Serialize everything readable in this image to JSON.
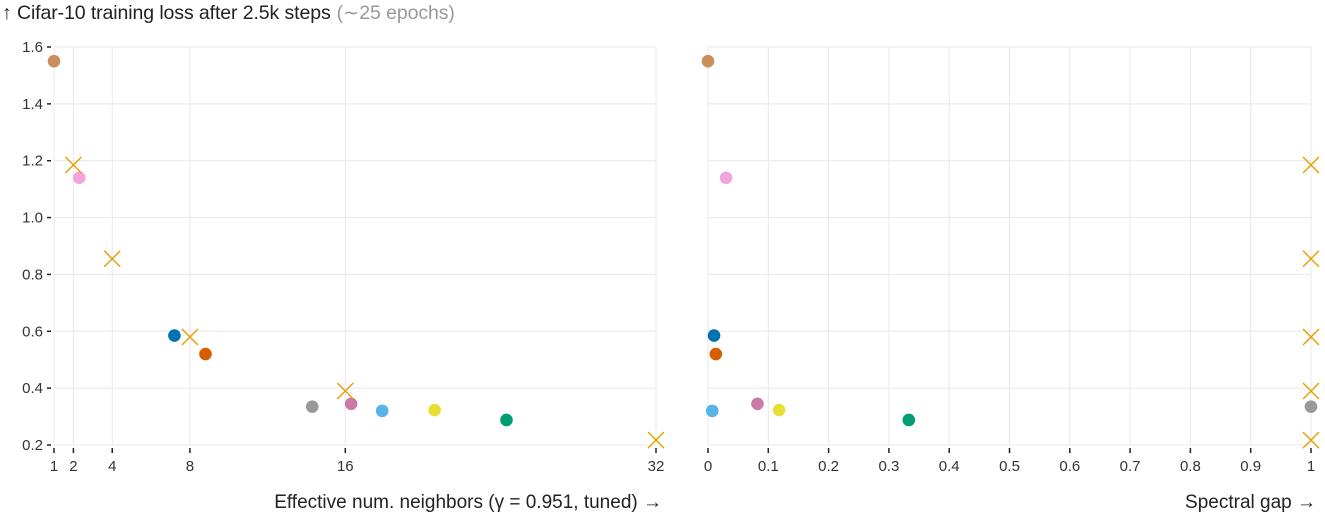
{
  "title": {
    "main": "↑ Cifar-10 training loss after 2.5k steps",
    "sub": "(∼25 epochs)"
  },
  "colors": {
    "grid": "#e8e8e8",
    "cross": "#E69F00",
    "tan": "#C98E5C",
    "pink": "#F5A3DD",
    "blue": "#0072B2",
    "vermillion": "#D55E00",
    "gray": "#999999",
    "purple": "#CC79A7",
    "skyblue": "#56B4E9",
    "yellow": "#E8DF34",
    "green": "#009E73"
  },
  "chart_data": [
    {
      "type": "scatter",
      "title": "Cifar-10 training loss after 2.5k steps (∼25 epochs)",
      "xlabel": "Effective num. neighbors (γ = 0.951, tuned) →",
      "ylabel": "Cifar-10 training loss",
      "xlim": [
        1,
        32
      ],
      "ylim": [
        0.2,
        1.6
      ],
      "xticks": [
        1,
        2,
        4,
        8,
        16,
        32
      ],
      "yticks": [
        0.2,
        0.4,
        0.6,
        0.8,
        1.0,
        1.2,
        1.4,
        1.6
      ],
      "grid": true,
      "series": [
        {
          "name": "tan",
          "marker": "circle",
          "color": "#C98E5C",
          "x": [
            1.0
          ],
          "y": [
            1.55
          ]
        },
        {
          "name": "pink",
          "marker": "circle",
          "color": "#F5A3DD",
          "x": [
            2.3
          ],
          "y": [
            1.14
          ]
        },
        {
          "name": "blue",
          "marker": "circle",
          "color": "#0072B2",
          "x": [
            7.2
          ],
          "y": [
            0.585
          ]
        },
        {
          "name": "vermillion",
          "marker": "circle",
          "color": "#D55E00",
          "x": [
            8.8
          ],
          "y": [
            0.52
          ]
        },
        {
          "name": "gray",
          "marker": "circle",
          "color": "#999999",
          "x": [
            14.3
          ],
          "y": [
            0.335
          ]
        },
        {
          "name": "purple",
          "marker": "circle",
          "color": "#CC79A7",
          "x": [
            16.3
          ],
          "y": [
            0.345
          ]
        },
        {
          "name": "skyblue",
          "marker": "circle",
          "color": "#56B4E9",
          "x": [
            17.9
          ],
          "y": [
            0.32
          ]
        },
        {
          "name": "yellow",
          "marker": "circle",
          "color": "#E8DF34",
          "x": [
            20.6
          ],
          "y": [
            0.323
          ]
        },
        {
          "name": "green",
          "marker": "circle",
          "color": "#009E73",
          "x": [
            24.3
          ],
          "y": [
            0.288
          ]
        },
        {
          "name": "cross",
          "marker": "x",
          "color": "#E69F00",
          "x": [
            2,
            4,
            8,
            16,
            32
          ],
          "y": [
            1.185,
            0.855,
            0.58,
            0.39,
            0.217
          ]
        }
      ]
    },
    {
      "type": "scatter",
      "title": "",
      "xlabel": "Spectral gap →",
      "ylabel": "",
      "xlim": [
        0,
        1
      ],
      "ylim": [
        0.2,
        1.6
      ],
      "xticks": [
        0,
        0.1,
        0.2,
        0.3,
        0.4,
        0.5,
        0.6,
        0.7,
        0.8,
        0.9,
        1
      ],
      "yticks": [
        0.2,
        0.4,
        0.6,
        0.8,
        1.0,
        1.2,
        1.4,
        1.6
      ],
      "grid": true,
      "series": [
        {
          "name": "tan",
          "marker": "circle",
          "color": "#C98E5C",
          "x": [
            0.0
          ],
          "y": [
            1.55
          ]
        },
        {
          "name": "pink",
          "marker": "circle",
          "color": "#F5A3DD",
          "x": [
            0.03
          ],
          "y": [
            1.14
          ]
        },
        {
          "name": "blue",
          "marker": "circle",
          "color": "#0072B2",
          "x": [
            0.01
          ],
          "y": [
            0.585
          ]
        },
        {
          "name": "vermillion",
          "marker": "circle",
          "color": "#D55E00",
          "x": [
            0.013
          ],
          "y": [
            0.52
          ]
        },
        {
          "name": "gray",
          "marker": "circle",
          "color": "#999999",
          "x": [
            1.0
          ],
          "y": [
            0.335
          ]
        },
        {
          "name": "purple",
          "marker": "circle",
          "color": "#CC79A7",
          "x": [
            0.082
          ],
          "y": [
            0.345
          ]
        },
        {
          "name": "skyblue",
          "marker": "circle",
          "color": "#56B4E9",
          "x": [
            0.007
          ],
          "y": [
            0.32
          ]
        },
        {
          "name": "yellow",
          "marker": "circle",
          "color": "#E8DF34",
          "x": [
            0.118
          ],
          "y": [
            0.323
          ]
        },
        {
          "name": "green",
          "marker": "circle",
          "color": "#009E73",
          "x": [
            0.333
          ],
          "y": [
            0.288
          ]
        },
        {
          "name": "cross",
          "marker": "x",
          "color": "#E69F00",
          "x": [
            1,
            1,
            1,
            1,
            1
          ],
          "y": [
            1.185,
            0.855,
            0.58,
            0.39,
            0.217
          ]
        }
      ]
    }
  ],
  "left_plot": {
    "xlabel": "Effective num. neighbors (γ = 0.951, tuned) →",
    "ytick_labels": [
      "0.2",
      "0.4",
      "0.6",
      "0.8",
      "1.0",
      "1.2",
      "1.4",
      "1.6"
    ],
    "xtick_labels": [
      "1",
      "2",
      "4",
      "8",
      "16",
      "32"
    ]
  },
  "right_plot": {
    "xlabel": "Spectral gap →",
    "xtick_labels": [
      "0",
      "0.1",
      "0.2",
      "0.3",
      "0.4",
      "0.5",
      "0.6",
      "0.7",
      "0.8",
      "0.9",
      "1"
    ]
  }
}
